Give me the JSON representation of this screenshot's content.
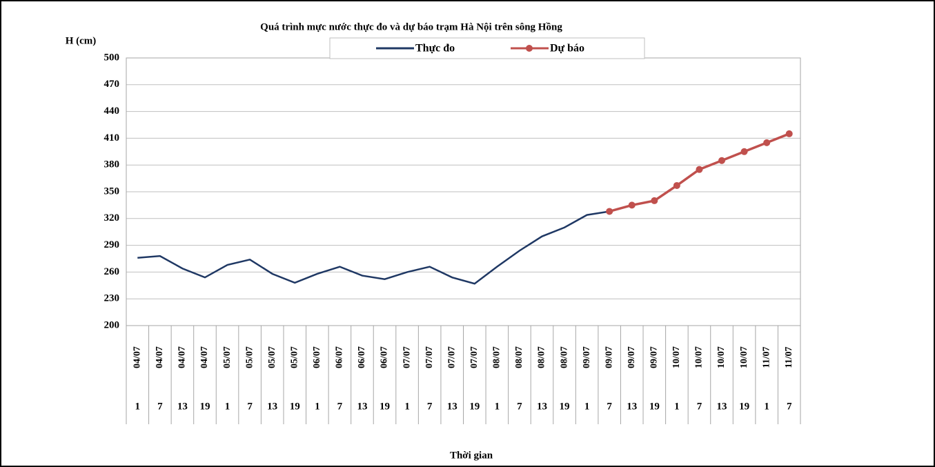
{
  "chart_data": {
    "type": "line",
    "title": "Quá trình mực nước thực đo và dự báo trạm Hà Nội trên sông Hồng",
    "y_label": "H (cm)",
    "x_label": "Thời gian",
    "categories": [
      "04/07",
      "04/07",
      "04/07",
      "04/07",
      "05/07",
      "05/07",
      "05/07",
      "05/07",
      "06/07",
      "06/07",
      "06/07",
      "06/07",
      "07/07",
      "07/07",
      "07/07",
      "07/07",
      "08/07",
      "08/07",
      "08/07",
      "08/07",
      "09/07",
      "09/07",
      "09/07",
      "09/07",
      "10/07",
      "10/07",
      "10/07",
      "10/07",
      "11/07",
      "11/07"
    ],
    "hours": [
      "1",
      "7",
      "13",
      "19",
      "1",
      "7",
      "13",
      "19",
      "1",
      "7",
      "13",
      "19",
      "1",
      "7",
      "13",
      "19",
      "1",
      "7",
      "13",
      "19",
      "1",
      "7",
      "13",
      "19",
      "1",
      "7",
      "13",
      "19",
      "1",
      "7"
    ],
    "series": [
      {
        "name": "Thực đo",
        "color": "#1f3864",
        "markers": false,
        "values": [
          276,
          278,
          264,
          254,
          268,
          274,
          258,
          248,
          258,
          266,
          256,
          252,
          260,
          266,
          254,
          247,
          266,
          284,
          300,
          310,
          324,
          328,
          null,
          null,
          null,
          null,
          null,
          null,
          null,
          null
        ]
      },
      {
        "name": "Dự báo",
        "color": "#c0504d",
        "markers": true,
        "values": [
          null,
          null,
          null,
          null,
          null,
          null,
          null,
          null,
          null,
          null,
          null,
          null,
          null,
          null,
          null,
          null,
          null,
          null,
          null,
          null,
          null,
          328,
          335,
          340,
          357,
          375,
          385,
          395,
          405,
          415
        ]
      }
    ],
    "ylim": [
      200,
      500
    ],
    "yticks": [
      200,
      230,
      260,
      290,
      320,
      350,
      380,
      410,
      440,
      470,
      500
    ],
    "grid": true
  }
}
